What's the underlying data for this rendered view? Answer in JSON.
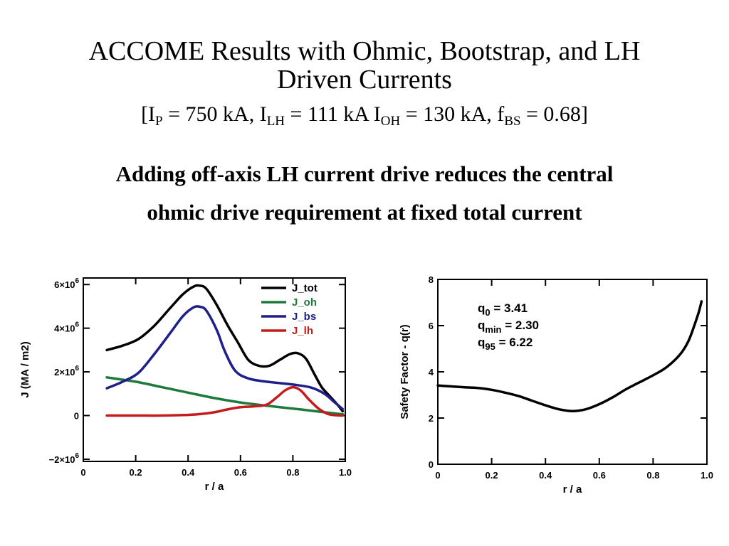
{
  "slide": {
    "title_line1": "ACCOME Results with Ohmic, Bootstrap, and LH",
    "title_line2": "Driven Currents",
    "params": {
      "open": "[I",
      "ip_sub": "P",
      "ip_val": " = 750 kA, I",
      "ilh_sub": "LH",
      "ilh_val": " = 111 kA I",
      "ioh_sub": "OH",
      "ioh_val": " = 130 kA, f",
      "fbs_sub": "BS",
      "fbs_val": " = 0.68]"
    },
    "subtitle_line1": "Adding off-axis LH current drive reduces the central",
    "subtitle_line2": "ohmic drive requirement at fixed total current"
  },
  "chart_data": [
    {
      "type": "line",
      "xlabel": "r / a",
      "ylabel": "J (MA / m2)",
      "xlim": [
        0,
        1.0
      ],
      "ylim": [
        -2100000,
        6300000
      ],
      "xticks": [
        0,
        0.2,
        0.4,
        0.6,
        0.8,
        1.0
      ],
      "xtick_labels": [
        "0",
        "0.2",
        "0.4",
        "0.6",
        "0.8",
        "1.0"
      ],
      "yticks": [
        -2000000,
        0,
        2000000,
        4000000,
        6000000
      ],
      "ytick_labels": [
        {
          "base": "−2×10",
          "exp": "6"
        },
        {
          "base": "0",
          "exp": ""
        },
        {
          "base": "2×10",
          "exp": "6"
        },
        {
          "base": "4×10",
          "exp": "6"
        },
        {
          "base": "6×10",
          "exp": "6"
        }
      ],
      "legend_position": "top-right",
      "series": [
        {
          "name": "J_tot",
          "color": "#000000",
          "x": [
            0.09,
            0.15,
            0.21,
            0.27,
            0.33,
            0.38,
            0.42,
            0.445,
            0.47,
            0.51,
            0.55,
            0.59,
            0.63,
            0.67,
            0.71,
            0.75,
            0.79,
            0.82,
            0.85,
            0.88,
            0.91,
            0.94,
            0.97,
            0.99
          ],
          "y": [
            3000000,
            3200000,
            3500000,
            4100000,
            4900000,
            5550000,
            5900000,
            5950000,
            5800000,
            5050000,
            4150000,
            3350000,
            2550000,
            2280000,
            2280000,
            2550000,
            2820000,
            2850000,
            2600000,
            1950000,
            1300000,
            900000,
            500000,
            200000
          ]
        },
        {
          "name": "J_oh",
          "color": "#1e7a3c",
          "x": [
            0.09,
            0.2,
            0.3,
            0.4,
            0.5,
            0.6,
            0.7,
            0.8,
            0.9,
            0.99
          ],
          "y": [
            1750000,
            1550000,
            1300000,
            1050000,
            800000,
            600000,
            450000,
            320000,
            180000,
            60000
          ]
        },
        {
          "name": "J_bs",
          "color": "#1f1f8a",
          "x": [
            0.09,
            0.15,
            0.21,
            0.27,
            0.33,
            0.38,
            0.42,
            0.445,
            0.47,
            0.51,
            0.54,
            0.58,
            0.63,
            0.7,
            0.8,
            0.87,
            0.92,
            0.96,
            0.99
          ],
          "y": [
            1250000,
            1550000,
            1950000,
            2800000,
            3750000,
            4550000,
            4950000,
            4980000,
            4800000,
            3900000,
            2950000,
            2050000,
            1700000,
            1550000,
            1420000,
            1280000,
            1000000,
            600000,
            300000
          ]
        },
        {
          "name": "J_lh",
          "color": "#c41c1c",
          "x": [
            0.09,
            0.2,
            0.3,
            0.4,
            0.45,
            0.5,
            0.55,
            0.6,
            0.65,
            0.7,
            0.74,
            0.77,
            0.8,
            0.83,
            0.86,
            0.9,
            0.94,
            0.99
          ],
          "y": [
            0,
            0,
            0,
            30000,
            70000,
            150000,
            280000,
            380000,
            420000,
            500000,
            850000,
            1150000,
            1300000,
            1150000,
            750000,
            300000,
            50000,
            0
          ]
        }
      ]
    },
    {
      "type": "line",
      "xlabel": "r / a",
      "ylabel": "Safety Factor - q(r)",
      "xlim": [
        0,
        1.0
      ],
      "ylim": [
        0,
        8
      ],
      "xticks": [
        0,
        0.2,
        0.4,
        0.6,
        0.8,
        1.0
      ],
      "xtick_labels": [
        "0",
        "0.2",
        "0.4",
        "0.6",
        "0.8",
        "1.0"
      ],
      "yticks": [
        0,
        2,
        4,
        6,
        8
      ],
      "ytick_labels": [
        "0",
        "2",
        "4",
        "6",
        "8"
      ],
      "annotations": [
        {
          "base": "q",
          "sub": "0",
          "text": " = 3.41"
        },
        {
          "base": "q",
          "sub": "min",
          "text": " = 2.30"
        },
        {
          "base": "q",
          "sub": "95",
          "text": " = 6.22"
        }
      ],
      "series": [
        {
          "name": "",
          "color": "#000000",
          "x": [
            0.0,
            0.05,
            0.1,
            0.15,
            0.2,
            0.25,
            0.3,
            0.35,
            0.4,
            0.45,
            0.5,
            0.55,
            0.6,
            0.65,
            0.7,
            0.75,
            0.8,
            0.85,
            0.9,
            0.93,
            0.95,
            0.97,
            0.98
          ],
          "y": [
            3.41,
            3.37,
            3.33,
            3.3,
            3.22,
            3.1,
            2.95,
            2.75,
            2.55,
            2.38,
            2.3,
            2.38,
            2.6,
            2.9,
            3.25,
            3.55,
            3.85,
            4.2,
            4.75,
            5.3,
            5.9,
            6.6,
            7.05
          ]
        }
      ]
    }
  ]
}
